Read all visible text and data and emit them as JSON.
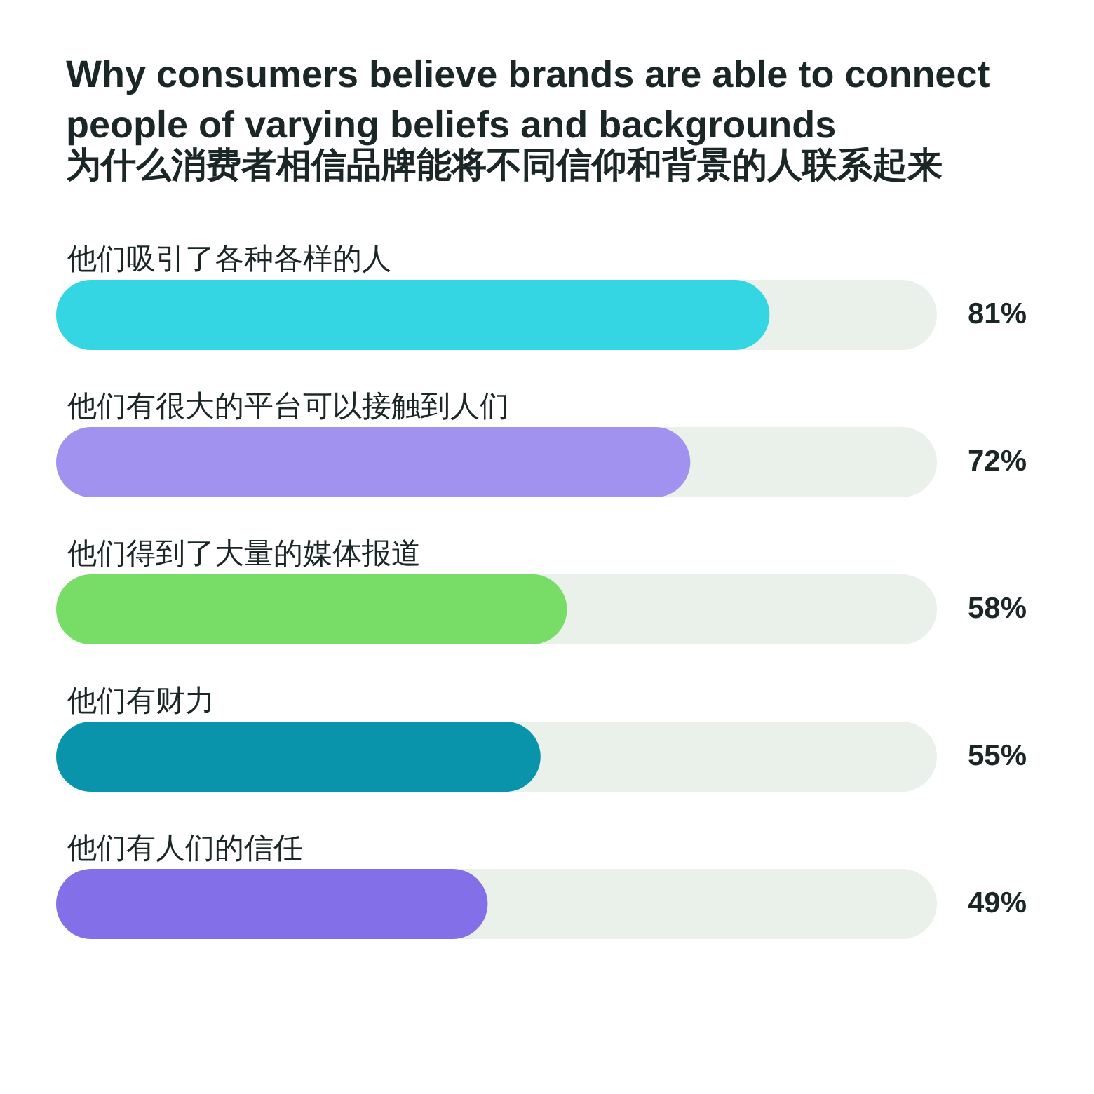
{
  "chart_data": {
    "type": "bar",
    "orientation": "horizontal",
    "title": "Why consumers believe brands are able to connect people of varying beliefs and backgrounds",
    "subtitle": "为什么消费者相信品牌能将不同信仰和背景的人联系起来",
    "categories": [
      "他们吸引了各种各样的人",
      "他们有很大的平台可以接触到人们",
      "他们得到了大量的媒体报道",
      "他们有财力",
      "他们有人们的信任"
    ],
    "values": [
      81,
      72,
      58,
      55,
      49
    ],
    "value_labels": [
      "81%",
      "72%",
      "58%",
      "55%",
      "49%"
    ],
    "colors": [
      "#33d6e2",
      "#a192f0",
      "#77dd66",
      "#0a94ab",
      "#8370e8"
    ],
    "xlim": [
      0,
      100
    ],
    "tick_labels": false
  }
}
